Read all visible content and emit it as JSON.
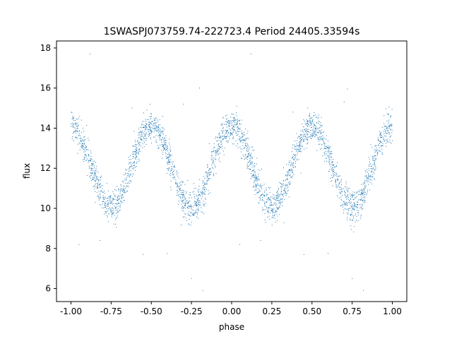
{
  "chart_data": {
    "type": "scatter",
    "title": "1SWASPJ073759.74-222723.4 Period 24405.33594s",
    "xlabel": "phase",
    "ylabel": "flux",
    "xlim": [
      -1.09,
      1.09
    ],
    "ylim": [
      5.35,
      18.35
    ],
    "x_ticks": [
      "-1.00",
      "-0.75",
      "-0.50",
      "-0.25",
      "0.00",
      "0.25",
      "0.50",
      "0.75",
      "1.00"
    ],
    "y_ticks": [
      "6",
      "8",
      "10",
      "12",
      "14",
      "16",
      "18"
    ],
    "grid": false,
    "legend": "none",
    "point_color": "#1f77b4",
    "series": [
      {
        "description_key": "phase-folded light curve",
        "model": {
          "mean": 12.1,
          "amplitude": 2.0,
          "cycles_per_phase_unit": 2,
          "scatter": 0.4,
          "n_points": 3000,
          "phase_range": [
            -1.0,
            1.0
          ]
        },
        "outliers": [
          [
            -0.88,
            17.7
          ],
          [
            0.12,
            17.7
          ],
          [
            -0.2,
            16.0
          ],
          [
            0.72,
            15.95
          ],
          [
            -0.62,
            15.0
          ],
          [
            0.38,
            14.8
          ],
          [
            -0.95,
            8.2
          ],
          [
            0.05,
            8.2
          ],
          [
            -0.55,
            7.7
          ],
          [
            0.45,
            7.7
          ],
          [
            -0.4,
            7.75
          ],
          [
            0.6,
            7.75
          ],
          [
            -0.18,
            5.9
          ],
          [
            0.82,
            5.9
          ],
          [
            -0.25,
            6.5
          ],
          [
            0.75,
            6.5
          ],
          [
            -0.82,
            8.4
          ],
          [
            0.18,
            8.4
          ],
          [
            -0.3,
            15.2
          ],
          [
            0.7,
            15.3
          ]
        ]
      }
    ]
  }
}
